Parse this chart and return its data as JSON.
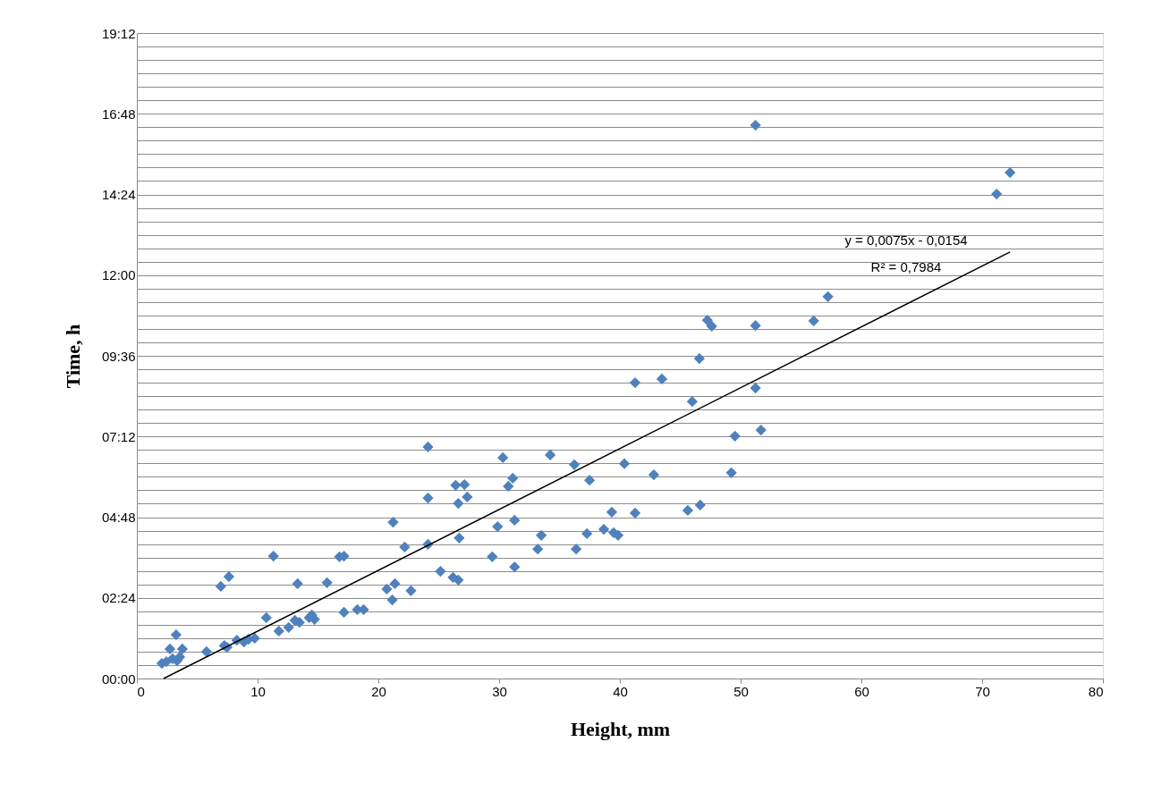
{
  "chart_data": {
    "type": "scatter",
    "xlabel": "Height, mm",
    "ylabel": "Time, h",
    "xlim": [
      0,
      80
    ],
    "xticks": [
      0,
      10,
      20,
      30,
      40,
      50,
      60,
      70,
      80
    ],
    "ylim": [
      0,
      19.2
    ],
    "yticks": [
      {
        "value": 0,
        "label": "00:00"
      },
      {
        "value": 0.4,
        "label": null
      },
      {
        "value": 0.8,
        "label": null
      },
      {
        "value": 1.2,
        "label": null
      },
      {
        "value": 1.6,
        "label": null
      },
      {
        "value": 2.0,
        "label": null
      },
      {
        "value": 2.4,
        "label": "02:24"
      },
      {
        "value": 2.8,
        "label": null
      },
      {
        "value": 3.2,
        "label": null
      },
      {
        "value": 3.6,
        "label": null
      },
      {
        "value": 4.0,
        "label": null
      },
      {
        "value": 4.4,
        "label": null
      },
      {
        "value": 4.8,
        "label": "04:48"
      },
      {
        "value": 5.2,
        "label": null
      },
      {
        "value": 5.6,
        "label": null
      },
      {
        "value": 6.0,
        "label": null
      },
      {
        "value": 6.4,
        "label": null
      },
      {
        "value": 6.8,
        "label": null
      },
      {
        "value": 7.2,
        "label": "07:12"
      },
      {
        "value": 7.6,
        "label": null
      },
      {
        "value": 8.0,
        "label": null
      },
      {
        "value": 8.4,
        "label": null
      },
      {
        "value": 8.8,
        "label": null
      },
      {
        "value": 9.2,
        "label": null
      },
      {
        "value": 9.6,
        "label": "09:36"
      },
      {
        "value": 10.0,
        "label": null
      },
      {
        "value": 10.4,
        "label": null
      },
      {
        "value": 10.8,
        "label": null
      },
      {
        "value": 11.2,
        "label": null
      },
      {
        "value": 11.6,
        "label": null
      },
      {
        "value": 12.0,
        "label": "12:00"
      },
      {
        "value": 12.4,
        "label": null
      },
      {
        "value": 12.8,
        "label": null
      },
      {
        "value": 13.2,
        "label": null
      },
      {
        "value": 13.6,
        "label": null
      },
      {
        "value": 14.0,
        "label": null
      },
      {
        "value": 14.4,
        "label": "14:24"
      },
      {
        "value": 14.8,
        "label": null
      },
      {
        "value": 15.2,
        "label": null
      },
      {
        "value": 15.6,
        "label": null
      },
      {
        "value": 16.0,
        "label": null
      },
      {
        "value": 16.4,
        "label": null
      },
      {
        "value": 16.8,
        "label": "16:48"
      },
      {
        "value": 17.2,
        "label": null
      },
      {
        "value": 17.6,
        "label": null
      },
      {
        "value": 18.0,
        "label": null
      },
      {
        "value": 18.4,
        "label": null
      },
      {
        "value": 18.8,
        "label": null
      },
      {
        "value": 19.2,
        "label": "19:12"
      }
    ],
    "grid": "y",
    "marker": "diamond",
    "series": [
      {
        "color": "#4f81bd",
        "x": [
          2.07,
          2.44,
          2.74,
          2.96,
          3.25,
          3.33,
          3.55,
          3.77,
          5.77,
          7.24,
          7.47,
          8.28,
          8.87,
          9.24,
          9.76,
          6.95,
          7.62,
          10.72,
          11.31,
          11.76,
          12.57,
          13.09,
          13.31,
          13.46,
          14.27,
          14.49,
          14.71,
          15.75,
          16.78,
          17.15,
          17.15,
          18.26,
          18.78,
          20.7,
          21.15,
          21.22,
          21.37,
          22.18,
          22.7,
          24.11,
          24.11,
          24.11,
          25.14,
          26.18,
          26.4,
          26.62,
          26.62,
          26.69,
          27.13,
          27.36,
          29.43,
          29.87,
          30.31,
          30.76,
          31.13,
          31.28,
          31.28,
          33.2,
          33.49,
          34.23,
          36.23,
          36.38,
          37.27,
          37.49,
          38.67,
          39.33,
          39.48,
          39.85,
          40.37,
          41.26,
          41.26,
          42.81,
          43.48,
          45.62,
          45.99,
          46.58,
          46.65,
          47.24,
          47.61,
          49.23,
          49.53,
          51.23,
          51.23,
          51.23,
          51.68,
          56.05,
          57.23,
          71.2,
          72.31
        ],
        "values": [
          0.45,
          0.5,
          0.88,
          0.59,
          1.3,
          0.53,
          0.64,
          0.88,
          0.8,
          0.98,
          0.93,
          1.14,
          1.09,
          1.17,
          1.2,
          2.74,
          3.03,
          1.81,
          3.64,
          1.41,
          1.52,
          1.73,
          2.82,
          1.67,
          1.81,
          1.89,
          1.76,
          2.85,
          3.62,
          3.64,
          1.97,
          2.05,
          2.05,
          2.66,
          2.34,
          4.65,
          2.82,
          3.91,
          2.61,
          6.89,
          5.37,
          3.99,
          3.19,
          3.01,
          5.75,
          5.21,
          2.93,
          4.18,
          5.77,
          5.4,
          3.62,
          4.52,
          6.57,
          5.72,
          5.96,
          4.71,
          3.32,
          3.85,
          4.26,
          6.65,
          6.36,
          3.85,
          4.31,
          5.9,
          4.44,
          4.95,
          4.34,
          4.26,
          6.39,
          4.92,
          8.8,
          6.06,
          8.91,
          5.0,
          8.24,
          9.52,
          5.16,
          10.66,
          10.48,
          6.12,
          7.21,
          10.5,
          8.64,
          16.46,
          7.39,
          10.64,
          11.36,
          14.41,
          15.05
        ]
      },
      {
        "type": "line",
        "color": "#000000",
        "x": [
          2.22,
          72.31
        ],
        "values": [
          0.0,
          12.69
        ],
        "marker": "none",
        "line_style": "solid"
      }
    ],
    "annotations": [
      "y = 0,0075x - 0,0154",
      "R² = 0,7984"
    ]
  }
}
